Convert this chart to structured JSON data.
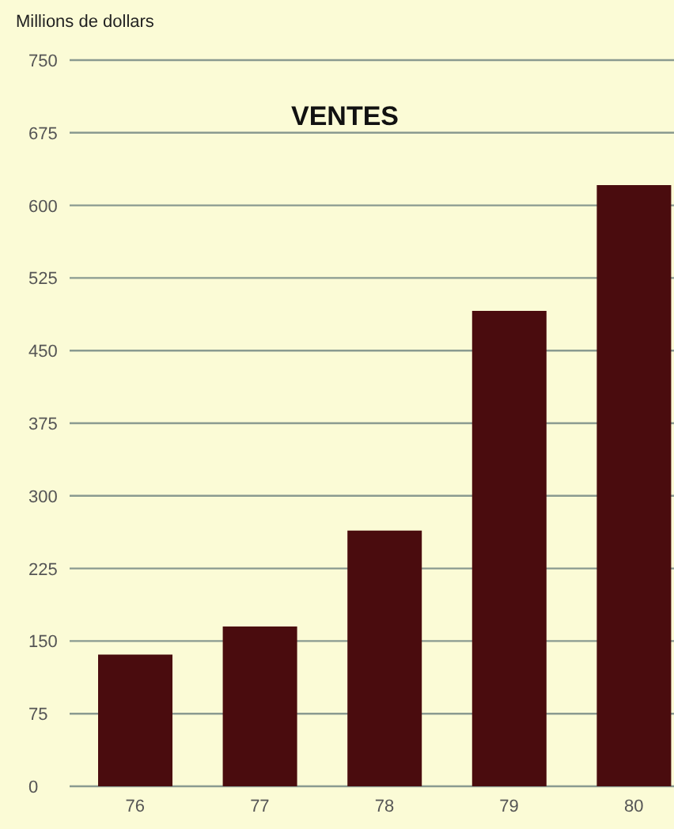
{
  "chart_data": {
    "type": "bar",
    "title": "VENTES",
    "ylabel": "Millions de dollars",
    "categories": [
      "76",
      "77",
      "78",
      "79",
      "80"
    ],
    "values": [
      136,
      165,
      264,
      491,
      621
    ],
    "color": "#4a0c0e",
    "ylim": [
      0,
      750
    ],
    "yticks": [
      0,
      75,
      150,
      225,
      300,
      375,
      450,
      525,
      600,
      675,
      750
    ],
    "grid": "y"
  }
}
